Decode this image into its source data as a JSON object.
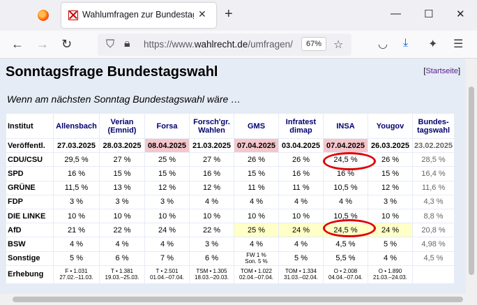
{
  "browser": {
    "tab_title": "Wahlumfragen zur Bundestagswahl",
    "tab_close": "✕",
    "new_tab": "+",
    "url_prefix": "https://www.",
    "url_domain": "wahlrecht.de",
    "url_path": "/umfragen/",
    "zoom": "67%",
    "min": "—",
    "max": "☐",
    "close": "✕"
  },
  "page": {
    "title": "Sonntagsfrage Bundestagswahl",
    "startseite_open": "[",
    "startseite": "Startseite",
    "startseite_close": "]",
    "subtitle": "Wenn am nächsten Sonntag Bundestagswahl wäre …"
  },
  "table": {
    "corner": "Institut",
    "institutes": [
      "Allensbach",
      "Verian\n(Emnid)",
      "Forsa",
      "Forsch'gr.\nWahlen",
      "GMS",
      "Infratest\ndimap",
      "INSA",
      "Yougov",
      "Bundes-\ntagswahl"
    ],
    "rows": [
      {
        "label": "Veröffentl.",
        "cells": [
          "27.03.2025",
          "28.03.2025",
          "08.04.2025",
          "21.03.2025",
          "07.04.2025",
          "03.04.2025",
          "07.04.2025",
          "26.03.2025",
          "23.02.2025"
        ]
      },
      {
        "label": "CDU/CSU",
        "cells": [
          "29,5 %",
          "27 %",
          "25 %",
          "27 %",
          "26 %",
          "26 %",
          "24,5 %",
          "26 %",
          "28,5 %"
        ]
      },
      {
        "label": "SPD",
        "cells": [
          "16 %",
          "15 %",
          "15 %",
          "16 %",
          "15 %",
          "16 %",
          "16 %",
          "15 %",
          "16,4 %"
        ]
      },
      {
        "label": "GRÜNE",
        "cells": [
          "11,5 %",
          "13 %",
          "12 %",
          "12 %",
          "11 %",
          "11 %",
          "10,5 %",
          "12 %",
          "11,6 %"
        ]
      },
      {
        "label": "FDP",
        "cells": [
          "3 %",
          "3 %",
          "3 %",
          "4 %",
          "4 %",
          "4 %",
          "4 %",
          "3 %",
          "4,3 %"
        ]
      },
      {
        "label": "DIE LINKE",
        "cells": [
          "10 %",
          "10 %",
          "10 %",
          "10 %",
          "10 %",
          "10 %",
          "10,5 %",
          "10 %",
          "8,8 %"
        ]
      },
      {
        "label": "AfD",
        "cells": [
          "21 %",
          "22 %",
          "24 %",
          "22 %",
          "25 %",
          "24 %",
          "24,5 %",
          "24 %",
          "20,8 %"
        ]
      },
      {
        "label": "BSW",
        "cells": [
          "4 %",
          "4 %",
          "4 %",
          "3 %",
          "4 %",
          "4 %",
          "4,5 %",
          "5 %",
          "4,98 %"
        ]
      },
      {
        "label": "Sonstige",
        "cells": [
          "5 %",
          "6 %",
          "7 %",
          "6 %",
          "FW 1 %\nSon. 5 %",
          "5 %",
          "5,5 %",
          "4 %",
          "4,5 %"
        ]
      },
      {
        "label": "Erhebung",
        "cells": [
          "F • 1.031\n27.02.–11.03.",
          "T • 1.381\n19.03.–25.03.",
          "T • 2.501\n01.04.–07.04.",
          "TSM • 1.305\n18.03.–20.03.",
          "TOM • 1.022\n02.04.–07.04.",
          "TOM • 1.334\n31.03.–02.04.",
          "O • 2.008\n04.04.–07.04.",
          "O • 1.890\n21.03.–24.03.",
          ""
        ]
      }
    ]
  },
  "colors": {
    "accent_date": "#f5c6cb",
    "highlight_afd": "#ffffc8",
    "annotation_ring": "#e00000",
    "header_text": "#00006e"
  },
  "icons": [
    "firefox-logo-icon",
    "back-arrow-icon",
    "forward-arrow-icon",
    "reload-icon",
    "shield-icon",
    "lock-icon",
    "bookmark-star-icon",
    "pocket-icon",
    "download-icon",
    "extensions-icon",
    "menu-icon"
  ]
}
